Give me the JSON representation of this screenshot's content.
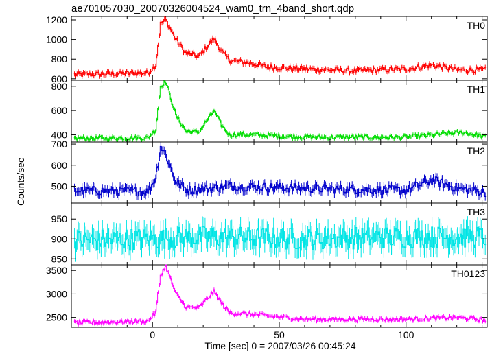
{
  "header": {
    "title": "ae701057030_20070326004524_wam0_trn_4band_short.qdp"
  },
  "chart_data": {
    "type": "line",
    "title": "ae701057030_20070326004524_wam0_trn_4band_short.qdp",
    "xlabel": "Time [sec] 0 = 2007/03/26 00:45:24",
    "ylabel": "Counts/sec",
    "xlim": [
      -32,
      132
    ],
    "xticks": [
      0,
      50,
      100
    ],
    "bin_width": 0.5,
    "panels": [
      {
        "name": "TH0",
        "color": "#ff0000",
        "ylim": [
          585,
          1235
        ],
        "yticks": [
          600,
          800,
          1000,
          1200
        ],
        "profile": [
          [
            -32,
            640
          ],
          [
            -2,
            660
          ],
          [
            1,
            740
          ],
          [
            3,
            1160
          ],
          [
            5,
            1200
          ],
          [
            9,
            1000
          ],
          [
            13,
            860
          ],
          [
            18,
            830
          ],
          [
            24,
            1010
          ],
          [
            27,
            880
          ],
          [
            30,
            790
          ],
          [
            38,
            760
          ],
          [
            45,
            720
          ],
          [
            60,
            700
          ],
          [
            80,
            680
          ],
          [
            100,
            700
          ],
          [
            110,
            740
          ],
          [
            120,
            690
          ],
          [
            132,
            690
          ]
        ],
        "noise": 28
      },
      {
        "name": "TH1",
        "color": "#00dd00",
        "ylim": [
          340,
          850
        ],
        "yticks": [
          400,
          600,
          800
        ],
        "profile": [
          [
            -32,
            370
          ],
          [
            -2,
            375
          ],
          [
            1,
            440
          ],
          [
            3,
            800
          ],
          [
            5,
            840
          ],
          [
            9,
            560
          ],
          [
            13,
            430
          ],
          [
            18,
            420
          ],
          [
            24,
            600
          ],
          [
            27,
            480
          ],
          [
            30,
            400
          ],
          [
            40,
            400
          ],
          [
            60,
            380
          ],
          [
            100,
            380
          ],
          [
            122,
            420
          ],
          [
            132,
            380
          ]
        ],
        "noise": 18
      },
      {
        "name": "TH2",
        "color": "#0000cc",
        "ylim": [
          420,
          710
        ],
        "yticks": [
          500,
          600,
          700
        ],
        "profile": [
          [
            -32,
            480
          ],
          [
            -2,
            475
          ],
          [
            1,
            540
          ],
          [
            3,
            690
          ],
          [
            5,
            650
          ],
          [
            9,
            520
          ],
          [
            14,
            480
          ],
          [
            30,
            500
          ],
          [
            60,
            490
          ],
          [
            100,
            480
          ],
          [
            110,
            530
          ],
          [
            120,
            490
          ],
          [
            132,
            470
          ]
        ],
        "noise": 22
      },
      {
        "name": "TH3",
        "color": "#00e5e5",
        "ylim": [
          835,
          990
        ],
        "yticks": [
          850,
          900,
          950
        ],
        "profile": [
          [
            -32,
            895
          ],
          [
            20,
            905
          ],
          [
            60,
            900
          ],
          [
            100,
            905
          ],
          [
            132,
            905
          ]
        ],
        "noise": 28
      },
      {
        "name": "TH0123",
        "color": "#ff00ff",
        "ylim": [
          2290,
          3620
        ],
        "yticks": [
          2500,
          3000,
          3500
        ],
        "profile": [
          [
            -32,
            2380
          ],
          [
            -2,
            2420
          ],
          [
            1,
            2600
          ],
          [
            3,
            3400
          ],
          [
            5,
            3600
          ],
          [
            9,
            3000
          ],
          [
            13,
            2720
          ],
          [
            18,
            2700
          ],
          [
            24,
            3050
          ],
          [
            27,
            2800
          ],
          [
            30,
            2600
          ],
          [
            40,
            2560
          ],
          [
            60,
            2460
          ],
          [
            100,
            2460
          ],
          [
            120,
            2500
          ],
          [
            132,
            2440
          ]
        ],
        "noise": 45
      }
    ]
  }
}
